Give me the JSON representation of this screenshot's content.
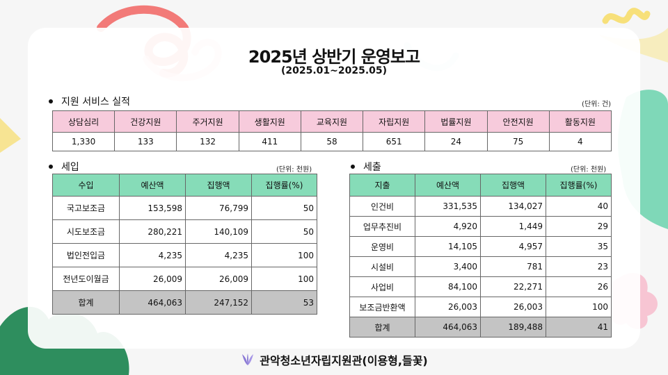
{
  "title": "2025년 상반기 운영보고",
  "subtitle": "(2025.01~2025.05)",
  "services": {
    "heading": "지원 서비스 실적",
    "unit": "(단위: 건)",
    "columns": [
      "상담심리",
      "건강지원",
      "주거지원",
      "생활지원",
      "교육지원",
      "자립지원",
      "법률지원",
      "안전지원",
      "활동지원"
    ],
    "values": [
      "1,330",
      "133",
      "132",
      "411",
      "58",
      "651",
      "24",
      "75",
      "4"
    ]
  },
  "income": {
    "heading": "세입",
    "unit": "(단위: 천원)",
    "columns": [
      "수입",
      "예산액",
      "집행액",
      "집행률(%)"
    ],
    "rows": [
      [
        "국고보조금",
        "153,598",
        "76,799",
        "50"
      ],
      [
        "시도보조금",
        "280,221",
        "140,109",
        "50"
      ],
      [
        "법인전입금",
        "4,235",
        "4,235",
        "100"
      ],
      [
        "전년도이월금",
        "26,009",
        "26,009",
        "100"
      ]
    ],
    "total": [
      "합계",
      "464,063",
      "247,152",
      "53"
    ]
  },
  "expense": {
    "heading": "세출",
    "unit": "(단위: 천원)",
    "columns": [
      "지출",
      "예산액",
      "집행액",
      "집행률(%)"
    ],
    "rows": [
      [
        "인건비",
        "331,535",
        "134,027",
        "40"
      ],
      [
        "업무추진비",
        "4,920",
        "1,449",
        "29"
      ],
      [
        "운영비",
        "14,105",
        "4,957",
        "35"
      ],
      [
        "시설비",
        "3,400",
        "781",
        "23"
      ],
      [
        "사업비",
        "84,100",
        "22,271",
        "26"
      ],
      [
        "보조금반환액",
        "26,003",
        "26,003",
        "100"
      ]
    ],
    "total": [
      "합계",
      "464,063",
      "189,488",
      "41"
    ]
  },
  "footer": "관악청소년자립지원관(이용형,들꽃)",
  "colors": {
    "service_header": "#f7cbdc",
    "finance_header": "#86dcb8",
    "total_row": "#c4c4c4"
  },
  "icons": [
    "flower-logo-icon"
  ]
}
